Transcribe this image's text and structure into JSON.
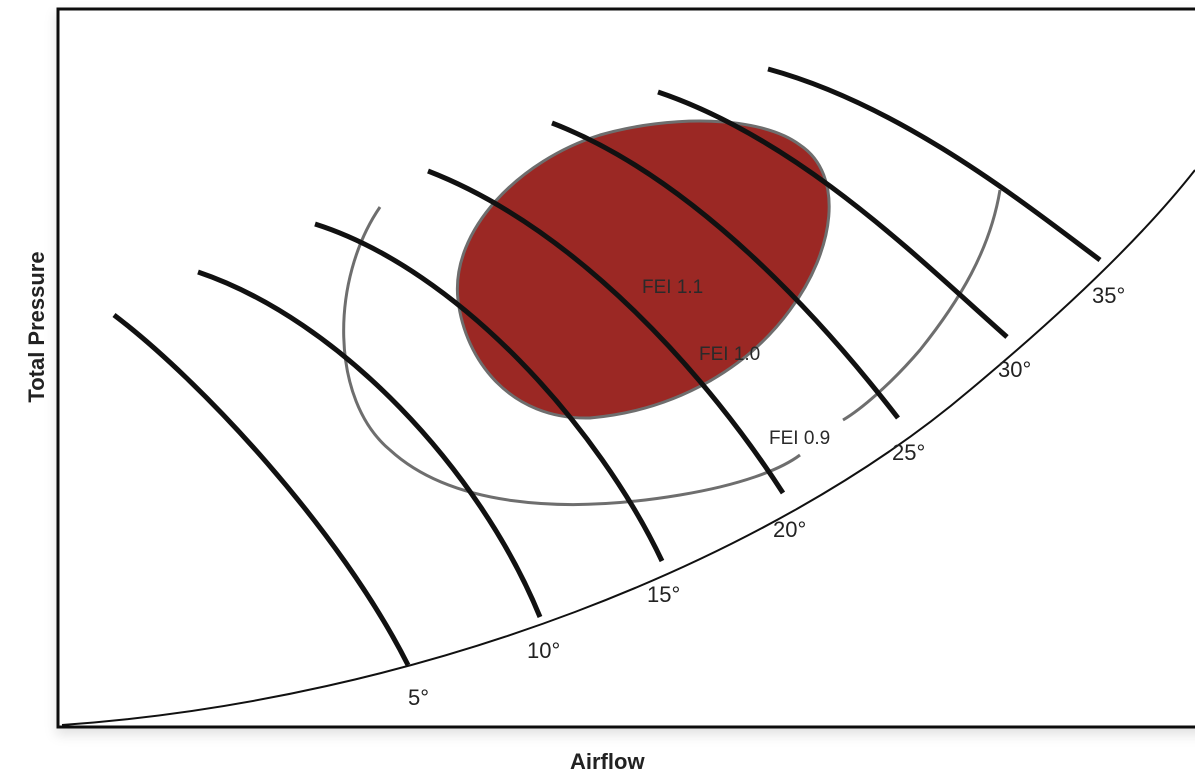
{
  "axes": {
    "x_label": "Airflow",
    "y_label": "Total Pressure"
  },
  "blade_angle_labels": [
    "5°",
    "10°",
    "15°",
    "20°",
    "25°",
    "30°",
    "35°"
  ],
  "fei_labels": {
    "inner": "FEI 1.1",
    "middle": "FEI 1.0",
    "outer": "FEI 0.9"
  },
  "colors": {
    "fei_region_fill": "#9b2824",
    "fei_contour": "#6e6e6e",
    "curves": "#111111",
    "frame": "#111111"
  }
}
